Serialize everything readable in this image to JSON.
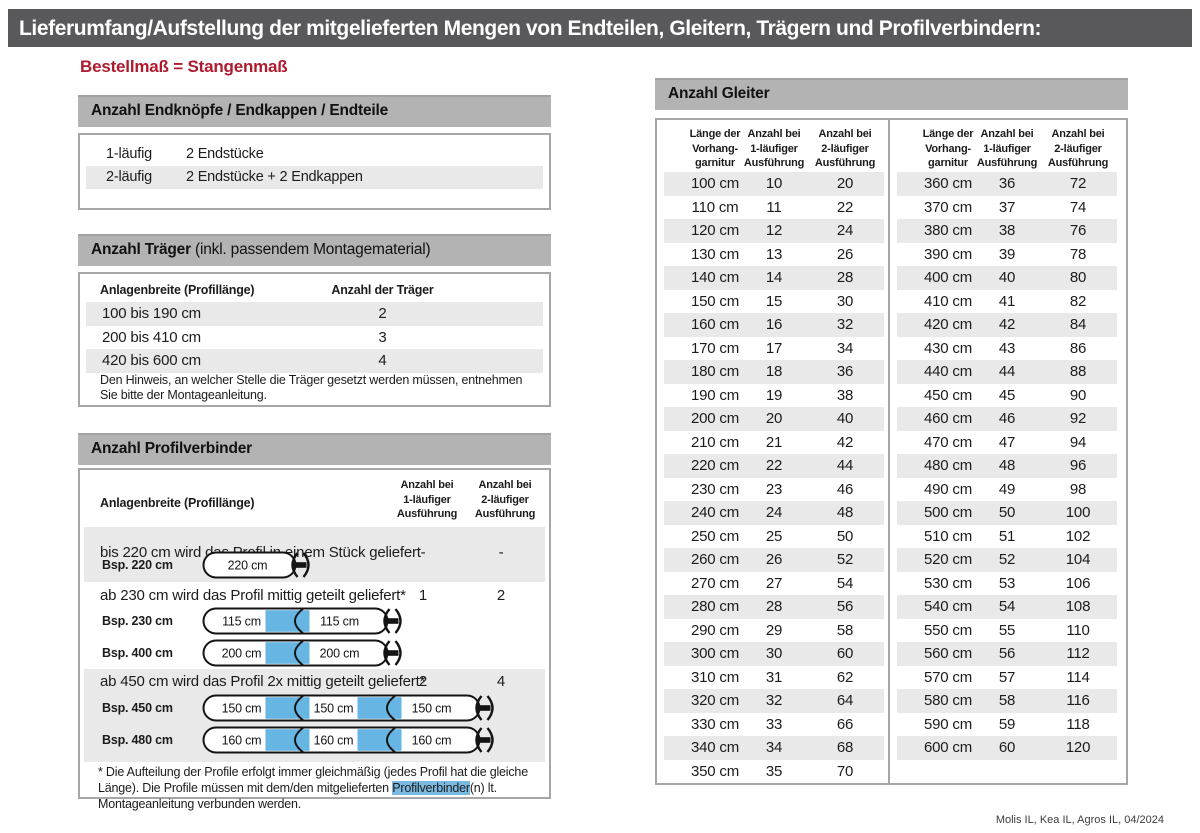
{
  "page": {
    "title": "Lieferumfang/Aufstellung der mitgelieferten Mengen von Endteilen, Gleitern, Trägern und Profilverbindern:",
    "subtitle": "Bestellmaß = Stangenmaß",
    "footer": "Molis IL, Kea IL, Agros IL, 04/2024"
  },
  "colors": {
    "topbar_gray": "#59595b",
    "section_bar_gray": "#b3b3b4",
    "row_stripe_gray": "#e9e9e9",
    "accent_red": "#ae1a2e",
    "connector_blue": "#66b5e3",
    "highlight_blue": "#79b9e2"
  },
  "endteile": {
    "title": "Anzahl Endknöpfe / Endkappen / Endteile",
    "rows": [
      {
        "label": "1-läufig",
        "value": "2 Endstücke"
      },
      {
        "label": "2-läufig",
        "value": "2 Endstücke + 2 Endkappen"
      }
    ]
  },
  "traeger": {
    "title_bold": "Anzahl Träger",
    "title_rest": " (inkl. passendem Montagematerial)",
    "col1": "Anlagenbreite (Profillänge)",
    "col2": "Anzahl der Träger",
    "rows": [
      {
        "range": "100 bis 190 cm",
        "count": "2"
      },
      {
        "range": "200 bis 410 cm",
        "count": "3"
      },
      {
        "range": "420 bis 600 cm",
        "count": "4"
      }
    ],
    "note": "Den Hinweis, an welcher Stelle die Träger gesetzt werden müssen, entnehmen Sie bitte der Montageanleitung."
  },
  "profilverbinder": {
    "title": "Anzahl Profilverbinder",
    "col1": "Anlagenbreite (Profillänge)",
    "col2": [
      "Anzahl bei",
      "1-läufiger",
      "Ausführung"
    ],
    "col3": [
      "Anzahl bei",
      "2-läufiger",
      "Ausführung"
    ],
    "blocks": [
      {
        "text": "bis 220 cm wird das Profil in einem Stück geliefert",
        "v1": "-",
        "v2": "-",
        "examples": [
          {
            "label": "Bsp. 220 cm",
            "segments": [
              "220 cm"
            ]
          }
        ]
      },
      {
        "text": "ab 230 cm wird das Profil mittig geteilt geliefert*",
        "v1": "1",
        "v2": "2",
        "examples": [
          {
            "label": "Bsp. 230 cm",
            "segments": [
              "115 cm",
              "115 cm"
            ]
          },
          {
            "label": "Bsp. 400 cm",
            "segments": [
              "200 cm",
              "200 cm"
            ]
          }
        ]
      },
      {
        "text": "ab 450 cm wird das Profil 2x mittig geteilt geliefert*",
        "v1": "2",
        "v2": "4",
        "examples": [
          {
            "label": "Bsp. 450 cm",
            "segments": [
              "150 cm",
              "150 cm",
              "150 cm"
            ]
          },
          {
            "label": "Bsp. 480 cm",
            "segments": [
              "160 cm",
              "160 cm",
              "160 cm"
            ]
          }
        ]
      }
    ],
    "footnote_pre": "* Die Aufteilung der Profile erfolgt immer gleichmäßig (jedes Profil hat die gleiche Länge). Die Profile müssen mit dem/den mitgelieferten ",
    "footnote_highlight": "Profilverbinder",
    "footnote_post": "(n) lt. Montageanleitung verbunden werden."
  },
  "gleiter": {
    "title": "Anzahl Gleiter",
    "col_headers": [
      [
        "Länge der",
        "Vorhang-",
        "garnitur"
      ],
      [
        "Anzahl bei",
        "1-läufiger",
        "Ausführung"
      ],
      [
        "Anzahl bei",
        "2-läufiger",
        "Ausführung"
      ]
    ],
    "left_rows": [
      [
        "100 cm",
        "10",
        "20"
      ],
      [
        "110 cm",
        "11",
        "22"
      ],
      [
        "120 cm",
        "12",
        "24"
      ],
      [
        "130 cm",
        "13",
        "26"
      ],
      [
        "140 cm",
        "14",
        "28"
      ],
      [
        "150 cm",
        "15",
        "30"
      ],
      [
        "160 cm",
        "16",
        "32"
      ],
      [
        "170 cm",
        "17",
        "34"
      ],
      [
        "180 cm",
        "18",
        "36"
      ],
      [
        "190 cm",
        "19",
        "38"
      ],
      [
        "200 cm",
        "20",
        "40"
      ],
      [
        "210 cm",
        "21",
        "42"
      ],
      [
        "220 cm",
        "22",
        "44"
      ],
      [
        "230 cm",
        "23",
        "46"
      ],
      [
        "240 cm",
        "24",
        "48"
      ],
      [
        "250 cm",
        "25",
        "50"
      ],
      [
        "260 cm",
        "26",
        "52"
      ],
      [
        "270 cm",
        "27",
        "54"
      ],
      [
        "280 cm",
        "28",
        "56"
      ],
      [
        "290 cm",
        "29",
        "58"
      ],
      [
        "300 cm",
        "30",
        "60"
      ],
      [
        "310 cm",
        "31",
        "62"
      ],
      [
        "320 cm",
        "32",
        "64"
      ],
      [
        "330 cm",
        "33",
        "66"
      ],
      [
        "340 cm",
        "34",
        "68"
      ],
      [
        "350 cm",
        "35",
        "70"
      ]
    ],
    "right_rows": [
      [
        "360 cm",
        "36",
        "72"
      ],
      [
        "370 cm",
        "37",
        "74"
      ],
      [
        "380 cm",
        "38",
        "76"
      ],
      [
        "390 cm",
        "39",
        "78"
      ],
      [
        "400 cm",
        "40",
        "80"
      ],
      [
        "410 cm",
        "41",
        "82"
      ],
      [
        "420 cm",
        "42",
        "84"
      ],
      [
        "430 cm",
        "43",
        "86"
      ],
      [
        "440 cm",
        "44",
        "88"
      ],
      [
        "450 cm",
        "45",
        "90"
      ],
      [
        "460 cm",
        "46",
        "92"
      ],
      [
        "470 cm",
        "47",
        "94"
      ],
      [
        "480 cm",
        "48",
        "96"
      ],
      [
        "490 cm",
        "49",
        "98"
      ],
      [
        "500 cm",
        "50",
        "100"
      ],
      [
        "510 cm",
        "51",
        "102"
      ],
      [
        "520 cm",
        "52",
        "104"
      ],
      [
        "530 cm",
        "53",
        "106"
      ],
      [
        "540 cm",
        "54",
        "108"
      ],
      [
        "550 cm",
        "55",
        "110"
      ],
      [
        "560 cm",
        "56",
        "112"
      ],
      [
        "570 cm",
        "57",
        "114"
      ],
      [
        "580 cm",
        "58",
        "116"
      ],
      [
        "590 cm",
        "59",
        "118"
      ],
      [
        "600 cm",
        "60",
        "120"
      ]
    ]
  }
}
